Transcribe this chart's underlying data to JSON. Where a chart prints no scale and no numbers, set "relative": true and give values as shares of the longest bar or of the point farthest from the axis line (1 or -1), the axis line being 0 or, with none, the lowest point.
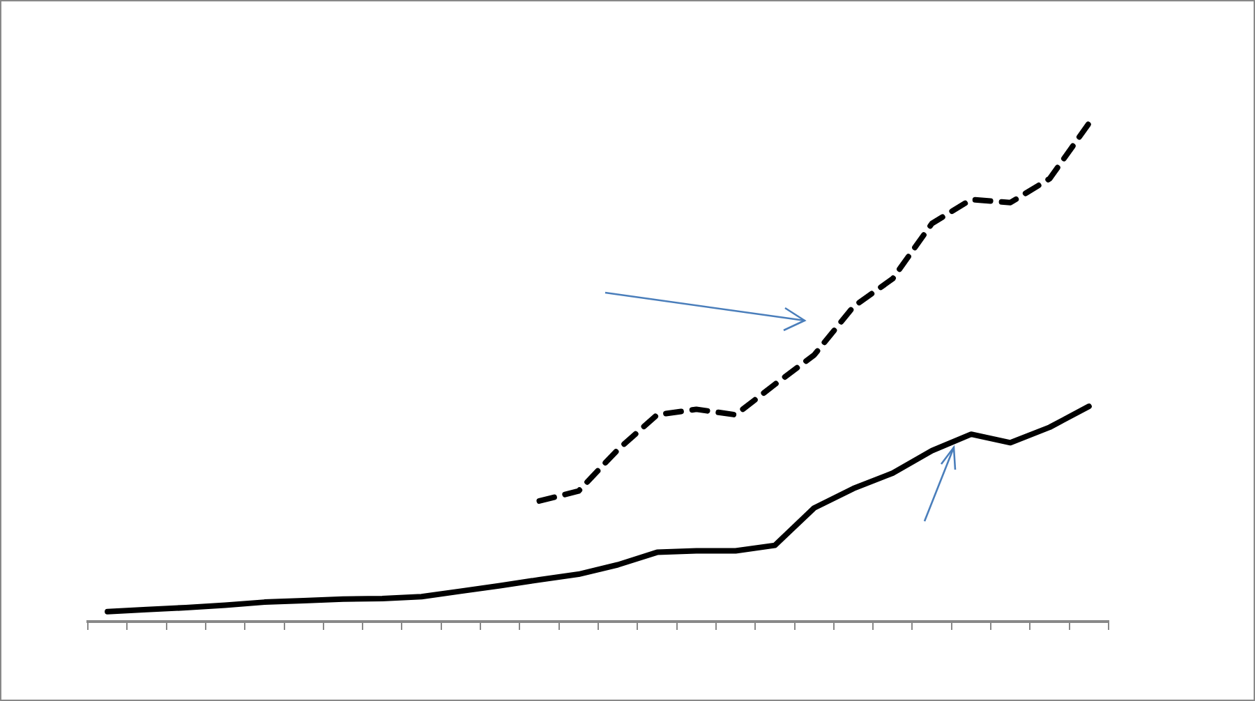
{
  "chart_data": {
    "type": "line",
    "relative": true,
    "legend": false,
    "tick_labels": false,
    "marker": "none",
    "categories": [
      null,
      null,
      null,
      null,
      null,
      null,
      null,
      null,
      null,
      null,
      null,
      null,
      null,
      null,
      null,
      null,
      null,
      null,
      null,
      null,
      null,
      null,
      null,
      null,
      null,
      null
    ],
    "series": [
      {
        "color": "#000000",
        "line_style": "solid",
        "values": [
          0.02,
          0.024,
          0.028,
          0.033,
          0.039,
          0.042,
          0.045,
          0.046,
          0.05,
          0.061,
          0.072,
          0.084,
          0.095,
          0.114,
          0.139,
          0.142,
          0.142,
          0.153,
          0.228,
          0.267,
          0.298,
          0.343,
          0.376,
          0.359,
          0.39,
          0.432
        ]
      },
      {
        "color": "#000000",
        "line_style": "dashed",
        "values": [
          null,
          null,
          null,
          null,
          null,
          null,
          null,
          null,
          null,
          null,
          null,
          0.242,
          0.262,
          0.345,
          0.415,
          0.426,
          0.415,
          0.476,
          0.535,
          0.632,
          0.688,
          0.799,
          0.847,
          0.841,
          0.889,
          1
        ]
      }
    ]
  }
}
